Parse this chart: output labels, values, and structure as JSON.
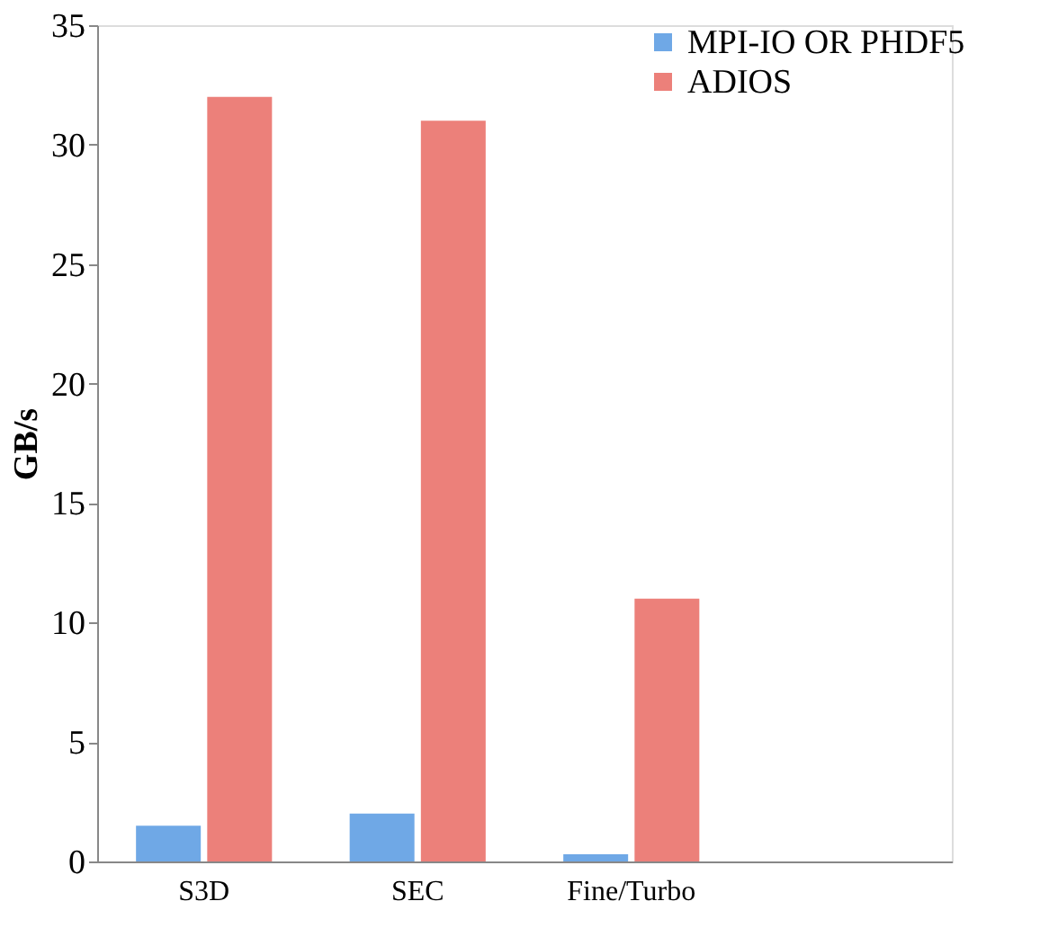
{
  "chart_data": {
    "type": "bar",
    "ylabel": "GB/s",
    "categories": [
      "S3D",
      "SEC",
      "Fine/Turbo",
      null
    ],
    "series": [
      {
        "name": "MPI-IO OR PHDF5",
        "color": "#6fa8e6",
        "values": [
          1.5,
          2,
          0.3,
          null
        ]
      },
      {
        "name": "ADIOS",
        "color": "#ec807a",
        "values": [
          32,
          31,
          11,
          null
        ]
      }
    ],
    "ylim": [
      0,
      35
    ],
    "yticks": [
      0,
      5,
      10,
      15,
      20,
      25,
      30,
      35
    ],
    "grid": false,
    "legend": "right"
  }
}
